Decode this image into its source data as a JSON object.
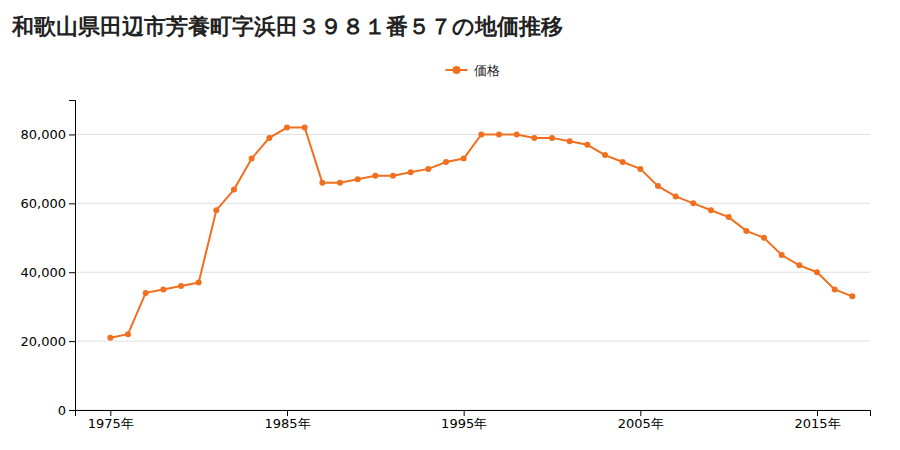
{
  "chart_data": {
    "type": "line",
    "title": "和歌山県田辺市芳養町字浜田３９８１番５７の地価推移",
    "x": [
      1975,
      1976,
      1977,
      1978,
      1979,
      1980,
      1981,
      1982,
      1983,
      1984,
      1985,
      1986,
      1987,
      1988,
      1989,
      1990,
      1991,
      1992,
      1993,
      1994,
      1995,
      1996,
      1997,
      1998,
      1999,
      2000,
      2001,
      2002,
      2003,
      2004,
      2005,
      2006,
      2007,
      2008,
      2009,
      2010,
      2011,
      2012,
      2013,
      2014,
      2015,
      2016,
      2017
    ],
    "series": [
      {
        "name": "価格",
        "color": "#f07020",
        "marker": "circle",
        "values": [
          21000,
          22000,
          34000,
          35000,
          36000,
          37000,
          58000,
          64000,
          73000,
          79000,
          82000,
          82000,
          66000,
          66000,
          67000,
          68000,
          68000,
          69000,
          70000,
          72000,
          73000,
          80000,
          80000,
          80000,
          79000,
          79000,
          78000,
          77000,
          74000,
          72000,
          70000,
          65000,
          62000,
          60000,
          58000,
          56000,
          52000,
          50000,
          45000,
          42000,
          40000,
          35000,
          33000
        ]
      }
    ],
    "xlim": [
      1973,
      2018
    ],
    "ylim": [
      0,
      90000
    ],
    "xticks": [
      {
        "value": 1975,
        "label": "1975年"
      },
      {
        "value": 1985,
        "label": "1985年"
      },
      {
        "value": 1995,
        "label": "1995年"
      },
      {
        "value": 2005,
        "label": "2005年"
      },
      {
        "value": 2015,
        "label": "2015年"
      }
    ],
    "yticks": [
      0,
      {
        "value": 20000,
        "label": "20,000"
      },
      {
        "value": 40000,
        "label": "40,000"
      },
      {
        "value": 60000,
        "label": "60,000"
      },
      {
        "value": 80000,
        "label": "80,000"
      }
    ],
    "grid": true,
    "legend": "top"
  }
}
